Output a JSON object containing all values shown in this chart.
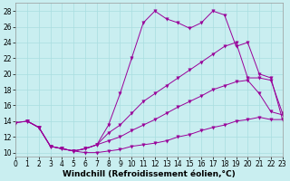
{
  "xlabel": "Windchill (Refroidissement éolien,°C)",
  "xlim": [
    0,
    23
  ],
  "ylim": [
    9.5,
    29
  ],
  "xticks": [
    0,
    1,
    2,
    3,
    4,
    5,
    6,
    7,
    8,
    9,
    10,
    11,
    12,
    13,
    14,
    15,
    16,
    17,
    18,
    19,
    20,
    21,
    22,
    23
  ],
  "yticks": [
    10,
    12,
    14,
    16,
    18,
    20,
    22,
    24,
    26,
    28
  ],
  "bg_color": "#c9eef0",
  "line_color": "#990099",
  "grid_color": "#a8dde0",
  "curve_top_x": [
    1,
    2,
    3,
    4,
    5,
    6,
    7,
    8,
    9,
    10,
    11,
    12,
    13,
    14,
    15,
    16,
    17,
    18,
    19,
    20,
    21,
    22,
    23
  ],
  "curve_top_y": [
    14.0,
    13.2,
    10.8,
    10.5,
    10.2,
    10.5,
    11.0,
    13.5,
    17.5,
    22.0,
    26.5,
    28.0,
    27.0,
    26.5,
    25.8,
    26.5,
    28.0,
    27.5,
    23.5,
    24.0,
    20.0,
    19.5,
    14.2
  ],
  "curve_mid1_x": [
    1,
    2,
    3,
    4,
    5,
    6,
    7,
    8,
    9,
    10,
    11,
    12,
    13,
    14,
    15,
    16,
    17,
    18,
    19,
    20,
    21,
    22,
    23
  ],
  "curve_mid1_y": [
    14.0,
    13.2,
    10.8,
    10.5,
    10.2,
    10.5,
    11.0,
    12.5,
    13.5,
    15.0,
    16.5,
    17.5,
    18.5,
    19.5,
    20.5,
    21.5,
    22.5,
    23.5,
    24.0,
    19.5,
    19.5,
    19.2,
    15.0
  ],
  "curve_mid2_x": [
    0,
    1,
    2,
    3,
    4,
    5,
    6,
    7,
    8,
    9,
    10,
    11,
    12,
    13,
    14,
    15,
    16,
    17,
    18,
    19,
    20,
    21,
    22,
    23
  ],
  "curve_mid2_y": [
    13.8,
    14.0,
    13.2,
    10.8,
    10.5,
    10.2,
    10.5,
    11.0,
    11.5,
    12.0,
    12.8,
    13.5,
    14.2,
    15.0,
    15.8,
    16.5,
    17.2,
    18.0,
    18.5,
    19.0,
    19.2,
    17.5,
    15.2,
    14.8
  ],
  "curve_bot_x": [
    0,
    1,
    2,
    3,
    4,
    5,
    6,
    7,
    8,
    9,
    10,
    11,
    12,
    13,
    14,
    15,
    16,
    17,
    18,
    19,
    20,
    21,
    22,
    23
  ],
  "curve_bot_y": [
    13.8,
    14.0,
    13.2,
    10.8,
    10.5,
    10.2,
    10.0,
    10.0,
    10.2,
    10.4,
    10.8,
    11.0,
    11.2,
    11.5,
    12.0,
    12.3,
    12.8,
    13.2,
    13.5,
    14.0,
    14.2,
    14.5,
    14.2,
    14.2
  ],
  "markersize": 2.5,
  "linewidth": 0.7,
  "font_size": 6.5,
  "tick_font_size": 5.5
}
